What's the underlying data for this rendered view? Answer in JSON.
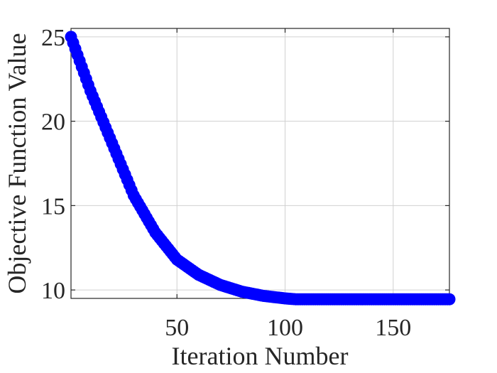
{
  "chart_data": {
    "type": "scatter",
    "title": "",
    "xlabel": "Iteration Number",
    "ylabel": "Objective Function Value",
    "xlim": [
      1,
      176
    ],
    "ylim": [
      9.5,
      25.5
    ],
    "x_ticks": [
      50,
      100,
      150
    ],
    "y_ticks": [
      10,
      15,
      20,
      25
    ],
    "grid": true,
    "marker_color": "#0000ff",
    "series": [
      {
        "x_start": 1,
        "x_end": 176,
        "y_start": 25.0,
        "y_plateau": 9.45,
        "plateau_from_x": 105,
        "sample_points": [
          {
            "x": 1,
            "y": 25.0
          },
          {
            "x": 10,
            "y": 21.8
          },
          {
            "x": 20,
            "y": 18.7
          },
          {
            "x": 30,
            "y": 15.6
          },
          {
            "x": 40,
            "y": 13.4
          },
          {
            "x": 50,
            "y": 11.8
          },
          {
            "x": 60,
            "y": 10.9
          },
          {
            "x": 70,
            "y": 10.3
          },
          {
            "x": 80,
            "y": 9.9
          },
          {
            "x": 90,
            "y": 9.65
          },
          {
            "x": 100,
            "y": 9.5
          },
          {
            "x": 105,
            "y": 9.45
          },
          {
            "x": 176,
            "y": 9.45
          }
        ]
      }
    ]
  }
}
